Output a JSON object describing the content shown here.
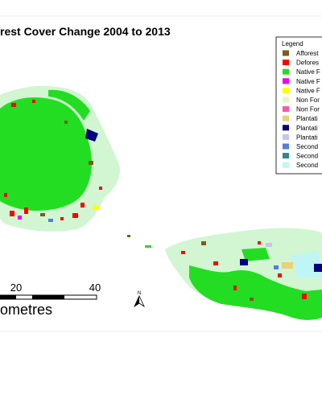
{
  "title": "rest Cover Change 2004 to 2013",
  "legend": {
    "title": "Legend",
    "items": [
      {
        "label": "Afforest",
        "color": "#7a5c1e"
      },
      {
        "label": "Defores",
        "color": "#ff0000"
      },
      {
        "label": "Native F",
        "color": "#22dd22"
      },
      {
        "label": "Native F",
        "color": "#ee00ee"
      },
      {
        "label": "Native F",
        "color": "#ffff00"
      },
      {
        "label": "Non For",
        "color": "#e6f7b8"
      },
      {
        "label": "Non For",
        "color": "#ff55aa"
      },
      {
        "label": "Plantati",
        "color": "#e8d27a"
      },
      {
        "label": "Plantati",
        "color": "#000080"
      },
      {
        "label": "Plantati",
        "color": "#c9c3ee"
      },
      {
        "label": "Second",
        "color": "#4f7fe0"
      },
      {
        "label": "Second",
        "color": "#2a8a8a"
      },
      {
        "label": "Second",
        "color": "#bff5f5"
      }
    ]
  },
  "scale_bar": {
    "labels": [
      "20",
      "40"
    ],
    "unit": "ometres"
  },
  "north_arrow": {
    "label": "N"
  }
}
